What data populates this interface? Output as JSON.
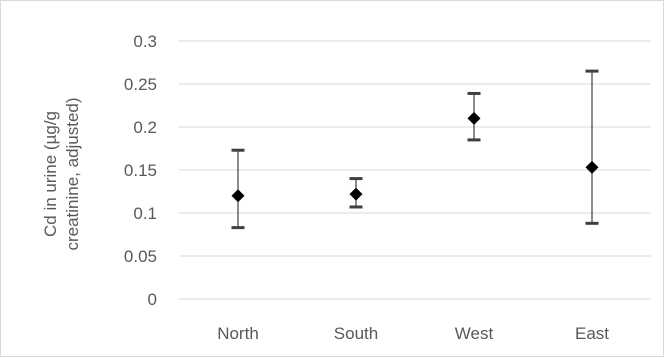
{
  "chart_data": {
    "type": "scatter",
    "title": "",
    "xlabel": "",
    "ylabel": "Cd in urine (µg/g creatinine, adjusted)",
    "ylabel_lines": [
      "Cd in urine (µg/g",
      "creatinine, adjusted)"
    ],
    "ylim": [
      0,
      0.3
    ],
    "yticks": [
      "0",
      "0.05",
      "0.1",
      "0.15",
      "0.2",
      "0.25",
      "0.3"
    ],
    "grid": true,
    "legend": "none",
    "categories": [
      "North",
      "South",
      "West",
      "East"
    ],
    "series": [
      {
        "values": [
          0.12,
          0.122,
          0.21,
          0.153
        ],
        "error_low": [
          0.083,
          0.107,
          0.185,
          0.088
        ],
        "error_high": [
          0.173,
          0.14,
          0.239,
          0.265
        ],
        "marker": "diamond",
        "color": "#000000"
      }
    ],
    "colors": {
      "gridline": "#d9d9d9",
      "error_bar": "#404040",
      "label_text": "#595959"
    }
  }
}
